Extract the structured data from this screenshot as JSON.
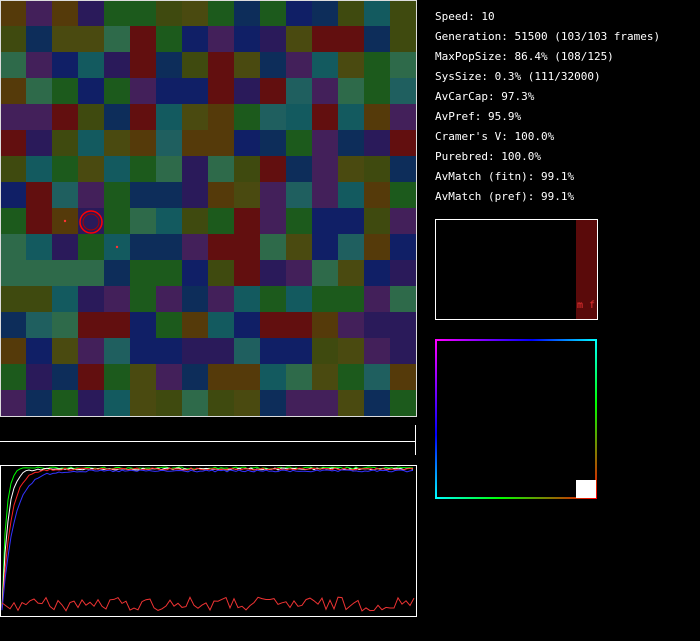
{
  "stats": [
    "Speed: 10",
    "Generation: 51500 (103/103 frames)",
    "MaxPopSize: 86.4% (108/125)",
    "SysSize: 0.3% (111/32000)",
    "AvCarCap: 97.3%",
    "AvPref: 95.9%",
    "Cramer's V: 100.0%",
    "Purebred: 100.0%",
    "AvMatch (fitn): 99.1%",
    "AvMatch (pref): 99.1%"
  ],
  "box_label": "m f"
}
